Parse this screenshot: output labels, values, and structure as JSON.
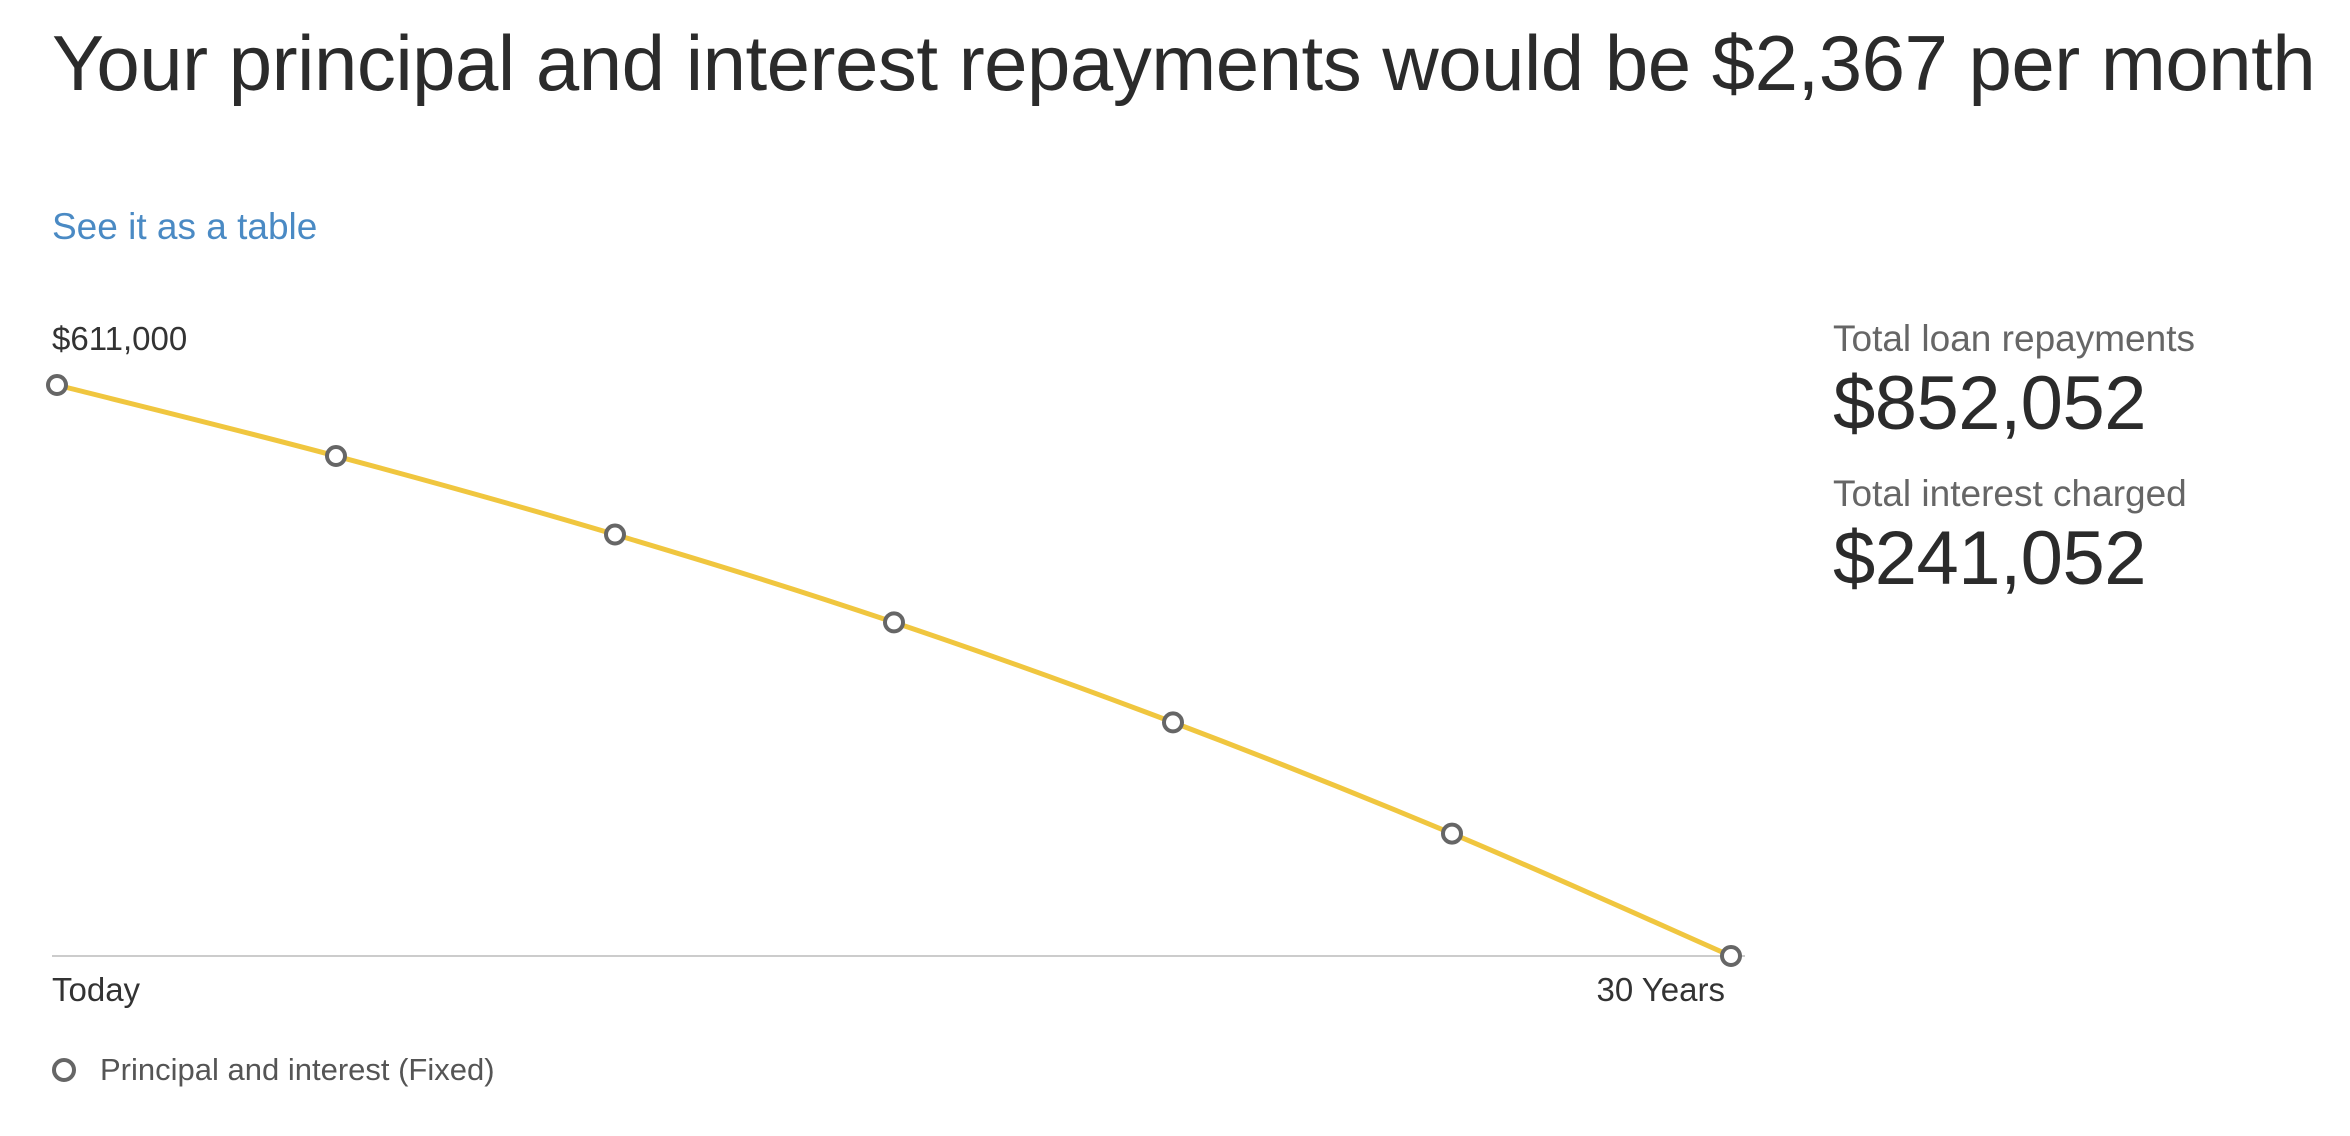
{
  "header": {
    "title": "Your principal and interest repayments would be $2,367 per month"
  },
  "links": {
    "table_label": "See it as a table"
  },
  "summary": {
    "total_repayments_label": "Total loan repayments",
    "total_repayments_value": "$852,052",
    "total_interest_label": "Total interest charged",
    "total_interest_value": "$241,052"
  },
  "colors": {
    "line": "#f0c63f",
    "marker": "#666666",
    "axis": "#cccccc",
    "link": "#4a8ac4"
  },
  "chart_data": {
    "type": "line",
    "x_start_label": "Today",
    "x_end_label": "30 Years",
    "y_max_label": "$611,000",
    "ylim": [
      0,
      611000
    ],
    "x": [
      0,
      5,
      10,
      15,
      20,
      25,
      30
    ],
    "series": [
      {
        "name": "Principal and interest (Fixed)",
        "values": [
          611000,
          535000,
          451000,
          357000,
          250000,
          131000,
          0
        ]
      }
    ],
    "grid": false,
    "legend_position": "bottom-left"
  }
}
